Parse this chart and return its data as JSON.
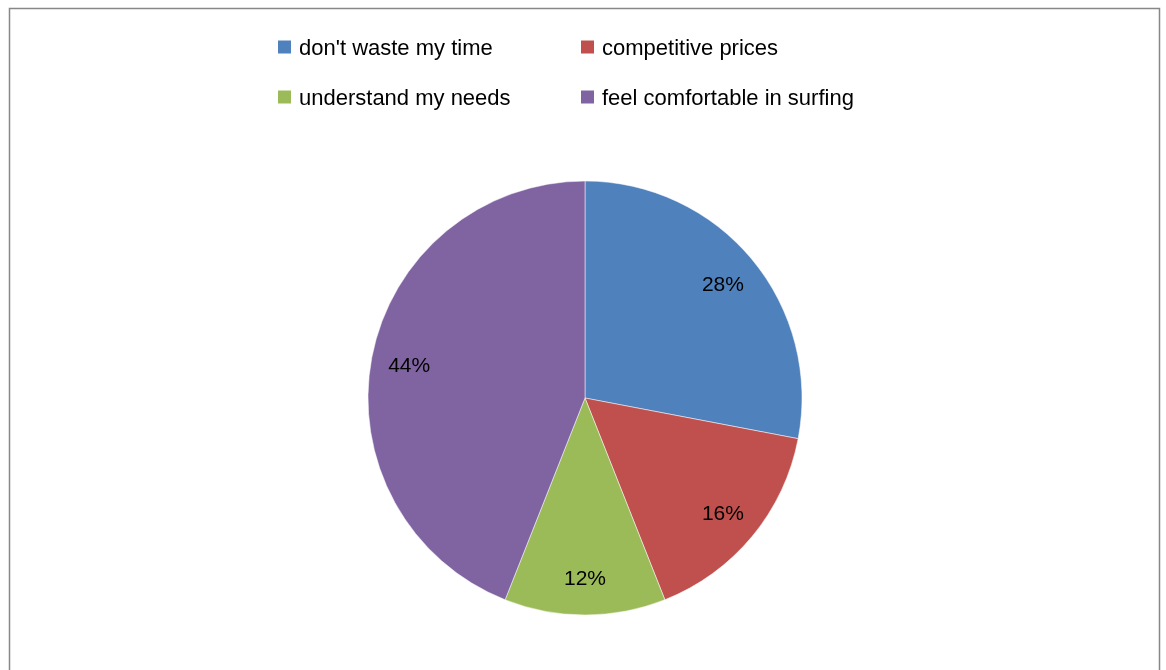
{
  "chart_data": {
    "type": "pie",
    "categories": [
      "don't waste my time",
      "competitive prices",
      "understand my needs",
      "feel comfortable in surfing"
    ],
    "values": [
      28,
      16,
      12,
      44
    ],
    "colors": [
      "#4f81bd",
      "#c0504d",
      "#9bbb59",
      "#8064a2"
    ],
    "value_labels": [
      "28%",
      "16%",
      "12%",
      "44%"
    ],
    "legend": "top"
  }
}
